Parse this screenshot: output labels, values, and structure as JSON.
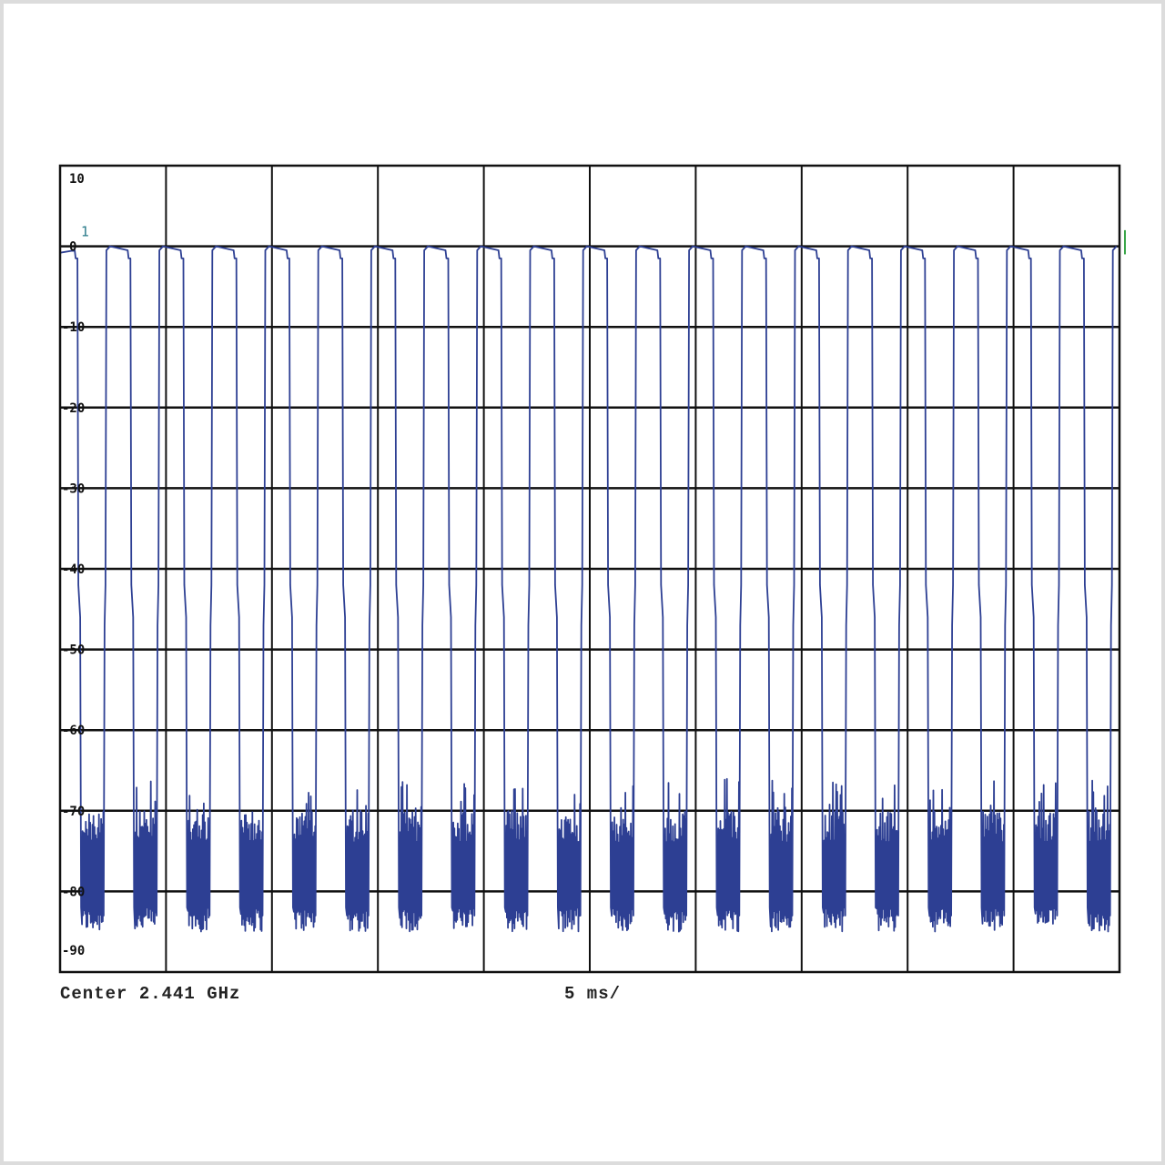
{
  "chart_data": {
    "type": "line",
    "title": "",
    "xlabel": "",
    "ylabel": "",
    "xlim_ms": [
      0,
      50
    ],
    "ylim": [
      -90,
      10
    ],
    "grid": true,
    "x_divisions": 10,
    "y_tick_labels": [
      "10",
      "0",
      "-10",
      "-20",
      "-30",
      "-40",
      "-50",
      "-60",
      "-70",
      "-80",
      "-90"
    ],
    "y_tick_values": [
      10,
      0,
      -10,
      -20,
      -30,
      -40,
      -50,
      -60,
      -70,
      -80,
      -90
    ],
    "footer": {
      "center": "Center 2.441 GHz",
      "sweep": "5 ms/"
    },
    "marker": {
      "label": "1",
      "x_ms": 1.2,
      "y": 0
    },
    "series": [
      {
        "on_level": 0,
        "intermediate_level": -42,
        "noise_floor_range": [
          -85,
          -70
        ],
        "pulse_period_ms": 2.5,
        "off_intervals_ms": [
          [
            0.95,
            2.1
          ],
          [
            3.45,
            4.6
          ],
          [
            5.95,
            7.1
          ],
          [
            8.45,
            9.6
          ],
          [
            10.95,
            12.1
          ],
          [
            13.45,
            14.6
          ],
          [
            15.95,
            17.1
          ],
          [
            18.45,
            19.6
          ],
          [
            20.95,
            22.1
          ],
          [
            23.45,
            24.6
          ],
          [
            25.95,
            27.1
          ],
          [
            28.45,
            29.6
          ],
          [
            30.95,
            32.1
          ],
          [
            33.45,
            34.6
          ],
          [
            35.95,
            37.1
          ],
          [
            38.45,
            39.6
          ],
          [
            40.95,
            42.1
          ],
          [
            43.45,
            44.6
          ],
          [
            45.95,
            47.1
          ],
          [
            48.45,
            49.6
          ]
        ]
      }
    ],
    "colors": {
      "trace": "#2d3f93",
      "noise": "#3a4fa6",
      "grid": "#111111",
      "marker": "#2a7b8a",
      "ref_tick": "#3aa64a"
    }
  }
}
